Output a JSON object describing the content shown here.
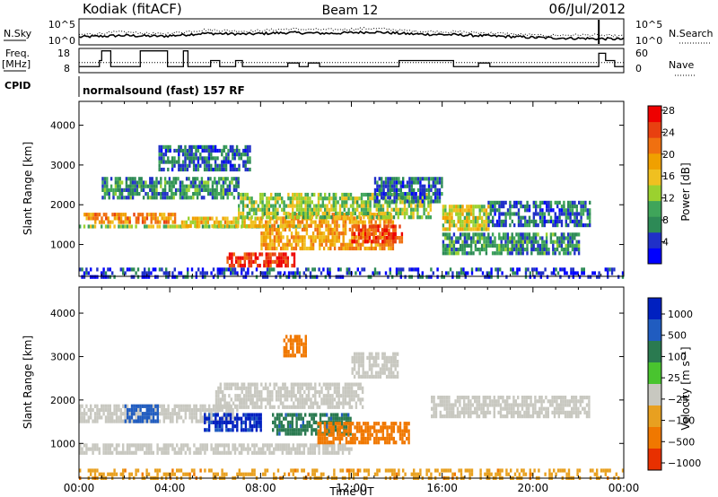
{
  "header": {
    "station": "Kodiak (fitACF)",
    "beam": "Beam 12",
    "date": "06/Jul/2012"
  },
  "colors": {
    "power_scale": [
      "#0000ff",
      "#2030c8",
      "#2d8a56",
      "#3fa55a",
      "#9bd12f",
      "#f0c020",
      "#f0a000",
      "#f07010",
      "#e84010",
      "#ee0000"
    ],
    "velocity_scale": [
      "#0020c0",
      "#205cc0",
      "#2a7a50",
      "#49c42f",
      "#c8c8c0",
      "#e8a020",
      "#f07800",
      "#e83000",
      "#ee0000"
    ],
    "ground_scatter": "#c8c8c0"
  },
  "chart_data": [
    {
      "type": "line",
      "panel": "noise",
      "left_label": "N.Sky",
      "right_label": "N.Search",
      "left_ticks": [
        "10^5",
        "10^0"
      ],
      "right_ticks": [
        "10^5",
        "10^0"
      ],
      "x": [
        "00:00",
        "02:00",
        "04:00",
        "06:00",
        "08:00",
        "10:00",
        "12:00",
        "14:00",
        "16:00",
        "18:00",
        "20:00",
        "22:00",
        "23:00",
        "24:00"
      ],
      "series": [
        {
          "name": "N.Sky",
          "style": "solid",
          "values": [
            0.6,
            0.8,
            0.7,
            1.1,
            1.0,
            1.2,
            1.1,
            1.3,
            1.0,
            0.9,
            0.7,
            0.5,
            0.4,
            0.3
          ]
        },
        {
          "name": "N.Search",
          "style": "dotted",
          "values": [
            0.9,
            1.3,
            1.0,
            1.6,
            1.4,
            1.7,
            1.6,
            1.8,
            1.4,
            1.3,
            1.1,
            0.8,
            0.9,
            0.7
          ]
        }
      ]
    },
    {
      "type": "line",
      "panel": "frequency",
      "left_label": "Freq.",
      "left_unit": "[MHz]",
      "right_label": "Nave",
      "left_ticks": [
        18,
        8
      ],
      "right_ticks": [
        60,
        0
      ],
      "steps": [
        {
          "t": 0.0,
          "freq": 10.5
        },
        {
          "t": 0.8,
          "freq": 10.5
        },
        {
          "t": 0.9,
          "freq": 13
        },
        {
          "t": 1.0,
          "freq": 17
        },
        {
          "t": 1.3,
          "freq": 17
        },
        {
          "t": 1.4,
          "freq": 10.5
        },
        {
          "t": 2.6,
          "freq": 10.5
        },
        {
          "t": 2.7,
          "freq": 17
        },
        {
          "t": 3.8,
          "freq": 17
        },
        {
          "t": 3.9,
          "freq": 10.5
        },
        {
          "t": 4.5,
          "freq": 10.5
        },
        {
          "t": 4.6,
          "freq": 17
        },
        {
          "t": 4.8,
          "freq": 10.5
        },
        {
          "t": 5.7,
          "freq": 10.5
        },
        {
          "t": 5.8,
          "freq": 13
        },
        {
          "t": 6.1,
          "freq": 13
        },
        {
          "t": 6.2,
          "freq": 10.5
        },
        {
          "t": 6.8,
          "freq": 10.5
        },
        {
          "t": 6.9,
          "freq": 13
        },
        {
          "t": 7.1,
          "freq": 13
        },
        {
          "t": 7.2,
          "freq": 10.5
        },
        {
          "t": 9.1,
          "freq": 10.5
        },
        {
          "t": 9.2,
          "freq": 12
        },
        {
          "t": 9.6,
          "freq": 12
        },
        {
          "t": 9.7,
          "freq": 10.5
        },
        {
          "t": 10.0,
          "freq": 10.5
        },
        {
          "t": 10.1,
          "freq": 12
        },
        {
          "t": 10.5,
          "freq": 12
        },
        {
          "t": 10.6,
          "freq": 10.5
        },
        {
          "t": 14.0,
          "freq": 10.5
        },
        {
          "t": 14.1,
          "freq": 13
        },
        {
          "t": 16.4,
          "freq": 13
        },
        {
          "t": 16.5,
          "freq": 10.5
        },
        {
          "t": 17.5,
          "freq": 10.5
        },
        {
          "t": 17.6,
          "freq": 12
        },
        {
          "t": 18.0,
          "freq": 12
        },
        {
          "t": 18.1,
          "freq": 10.5
        },
        {
          "t": 22.8,
          "freq": 10.5
        },
        {
          "t": 22.9,
          "freq": 16
        },
        {
          "t": 23.1,
          "freq": 16
        },
        {
          "t": 23.2,
          "freq": 13
        },
        {
          "t": 23.5,
          "freq": 13
        },
        {
          "t": 23.6,
          "freq": 10.5
        },
        {
          "t": 24.0,
          "freq": 10.5
        }
      ],
      "nave_level": 25
    },
    {
      "type": "table",
      "panel": "cpid",
      "label": "CPID",
      "text": "normalsound (fast) 157 RF"
    },
    {
      "type": "heatmap",
      "panel": "power",
      "xlabel": "",
      "ylabel": "Slant Range [km]",
      "xlim": [
        0,
        24
      ],
      "ylim": [
        200,
        4600
      ],
      "y_ticks": [
        1000,
        2000,
        3000,
        4000
      ],
      "colorbar_label": "Power [dB]",
      "colorbar_ticks": [
        4,
        8,
        12,
        16,
        20,
        24,
        28
      ],
      "bands": [
        {
          "t0": 0.0,
          "t1": 10.0,
          "r0": 1450,
          "r1": 1500,
          "value": 14
        },
        {
          "t0": 0.2,
          "t1": 4.2,
          "r0": 1550,
          "r1": 1800,
          "value": 22
        },
        {
          "t0": 4.5,
          "t1": 8.0,
          "r0": 1450,
          "r1": 1700,
          "value": 18
        },
        {
          "t0": 6.5,
          "t1": 9.5,
          "r0": 500,
          "r1": 800,
          "value": 27
        },
        {
          "t0": 8.0,
          "t1": 13.8,
          "r0": 900,
          "r1": 1800,
          "value": 20
        },
        {
          "t0": 7.0,
          "t1": 15.5,
          "r0": 1700,
          "r1": 2300,
          "value": 14
        },
        {
          "t0": 12.0,
          "t1": 14.2,
          "r0": 1100,
          "r1": 1500,
          "value": 26
        },
        {
          "t0": 13.0,
          "t1": 16.0,
          "r0": 2100,
          "r1": 2700,
          "value": 8
        },
        {
          "t0": 1.0,
          "t1": 7.0,
          "r0": 2200,
          "r1": 2700,
          "value": 10
        },
        {
          "t0": 3.5,
          "t1": 7.5,
          "r0": 2900,
          "r1": 3500,
          "value": 8
        },
        {
          "t0": 16.0,
          "t1": 18.0,
          "r0": 1350,
          "r1": 2000,
          "value": 16
        },
        {
          "t0": 18.0,
          "t1": 22.5,
          "r0": 1500,
          "r1": 2100,
          "value": 8
        },
        {
          "t0": 16.0,
          "t1": 22.0,
          "r0": 800,
          "r1": 1300,
          "value": 10
        },
        {
          "t0": 0.0,
          "t1": 24.0,
          "r0": 220,
          "r1": 420,
          "value": 6
        }
      ]
    },
    {
      "type": "heatmap",
      "panel": "velocity",
      "xlabel": "Time UT",
      "ylabel": "Slant Range [km]",
      "xlim": [
        0,
        24
      ],
      "ylim": [
        200,
        4600
      ],
      "x_ticks": [
        "00:00",
        "04:00",
        "08:00",
        "12:00",
        "16:00",
        "20:00",
        "00:00"
      ],
      "y_ticks": [
        1000,
        2000,
        3000,
        4000
      ],
      "colorbar_label": "Velocity [m s⁻¹]",
      "colorbar_ticks": [
        "1000",
        "500",
        "100",
        "25",
        "−25",
        "−100",
        "−500",
        "−1000"
      ],
      "bands": [
        {
          "t0": 0.0,
          "t1": 7.0,
          "r0": 1500,
          "r1": 1900,
          "value": 0
        },
        {
          "t0": 0.0,
          "t1": 12.0,
          "r0": 800,
          "r1": 1000,
          "value": 0
        },
        {
          "t0": 2.0,
          "t1": 3.5,
          "r0": 1500,
          "r1": 1900,
          "value": 300
        },
        {
          "t0": 5.5,
          "t1": 8.0,
          "r0": 1300,
          "r1": 1700,
          "value": 600
        },
        {
          "t0": 8.5,
          "t1": 12.0,
          "r0": 1200,
          "r1": 1700,
          "value": 80
        },
        {
          "t0": 10.5,
          "t1": 14.5,
          "r0": 1000,
          "r1": 1500,
          "value": -300
        },
        {
          "t0": 6.0,
          "t1": 12.5,
          "r0": 1800,
          "r1": 2400,
          "value": 0
        },
        {
          "t0": 15.5,
          "t1": 22.5,
          "r0": 1600,
          "r1": 2100,
          "value": 0
        },
        {
          "t0": 9.0,
          "t1": 10.0,
          "r0": 3000,
          "r1": 3500,
          "value": -150
        },
        {
          "t0": 12.0,
          "t1": 14.0,
          "r0": 2500,
          "r1": 3100,
          "value": 0
        },
        {
          "t0": 0.0,
          "t1": 24.0,
          "r0": 220,
          "r1": 420,
          "value": -80
        }
      ]
    }
  ]
}
